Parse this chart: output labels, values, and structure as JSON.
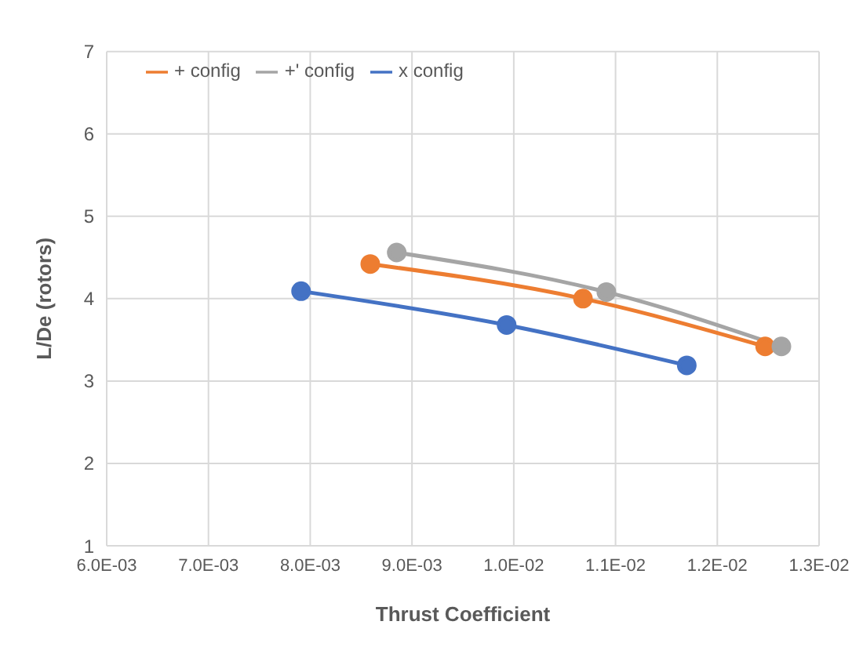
{
  "chart_data": {
    "type": "line",
    "xlabel": "Thrust Coefficient",
    "ylabel": "L/De (rotors)",
    "xlim": [
      0.006,
      0.013
    ],
    "xticks": [
      {
        "value": 0.006,
        "label": "6.0E-03"
      },
      {
        "value": 0.007,
        "label": "7.0E-03"
      },
      {
        "value": 0.008,
        "label": "8.0E-03"
      },
      {
        "value": 0.009,
        "label": "9.0E-03"
      },
      {
        "value": 0.01,
        "label": "1.0E-02"
      },
      {
        "value": 0.011,
        "label": "1.1E-02"
      },
      {
        "value": 0.012,
        "label": "1.2E-02"
      },
      {
        "value": 0.013,
        "label": "1.3E-02"
      }
    ],
    "ylim": [
      1,
      7
    ],
    "yticks": [
      1,
      2,
      3,
      4,
      5,
      6,
      7
    ],
    "grid": true,
    "legend": "top left",
    "marker": "circle",
    "line_style": "solid",
    "series": [
      {
        "name": "x config",
        "color": "#4472c4",
        "x": [
          0.00791,
          0.00993,
          0.0117
        ],
        "values": [
          4.09,
          3.68,
          3.19
        ]
      },
      {
        "name": "+ config",
        "color": "#ed7d31",
        "x": [
          0.00859,
          0.01068,
          0.01247
        ],
        "values": [
          4.42,
          4.0,
          3.42
        ]
      },
      {
        "name": "+' config",
        "color": "#a5a5a5",
        "x": [
          0.00885,
          0.01091,
          0.01263
        ],
        "values": [
          4.56,
          4.08,
          3.42
        ]
      }
    ]
  }
}
